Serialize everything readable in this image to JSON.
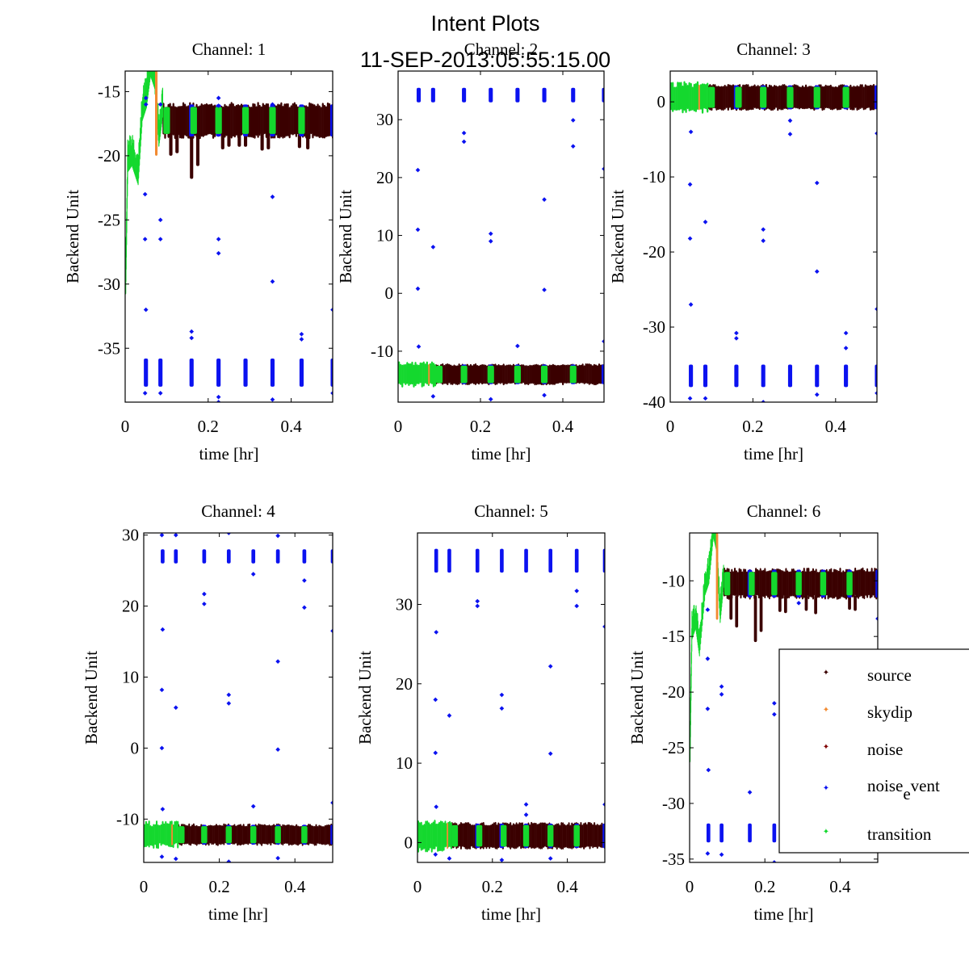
{
  "figure": {
    "title_line1": "Intent Plots",
    "title_line2": "11-SEP-2013:05:55:15.00"
  },
  "legend": {
    "entries": [
      {
        "key": "source",
        "label": "source",
        "color": "#3a0000"
      },
      {
        "key": "skydip",
        "label": "skydip",
        "color": "#f28a30"
      },
      {
        "key": "noise",
        "label": "noise",
        "color": "#800000"
      },
      {
        "key": "noise_event",
        "label_main": "noise",
        "label_sub": "e",
        "label_rest": "vent",
        "color": "#0b12f0"
      },
      {
        "key": "transition",
        "label": "transition",
        "color": "#14d82e"
      }
    ]
  },
  "chart_data": [
    {
      "type": "scatter",
      "title": "Channel: 1",
      "xlabel": "time [hr]",
      "ylabel": "Backend Unit",
      "xlim": [
        0,
        0.5
      ],
      "ylim": [
        -39.2,
        -13.4
      ],
      "xticks": [
        0,
        0.2,
        0.4
      ],
      "xtick_labels": [
        "0",
        "0.2",
        "0.4"
      ],
      "yticks": [
        -35,
        -30,
        -25,
        -20,
        -15
      ],
      "ytick_labels": [
        "-35",
        "-30",
        "-25",
        "-20",
        "-15"
      ],
      "transition_ramp": [
        [
          0,
          -30.5
        ],
        [
          0.005,
          -21
        ],
        [
          0.015,
          -20.5
        ],
        [
          0.03,
          -22
        ],
        [
          0.04,
          -17
        ],
        [
          0.05,
          -16
        ],
        [
          0.06,
          -13.5
        ],
        [
          0.07,
          -14.5
        ],
        [
          0.08,
          -19
        ],
        [
          0.09,
          -16.5
        ]
      ],
      "skydip": {
        "x": 0.075,
        "y_range": [
          -20,
          -13.4
        ]
      },
      "source_band": {
        "x_range": [
          0.09,
          0.5
        ],
        "y_range": [
          -18.3,
          -16.2
        ]
      },
      "source_dips": [
        [
          0.11,
          -20
        ],
        [
          0.125,
          -19.8
        ],
        [
          0.16,
          -21.8
        ],
        [
          0.175,
          -20.8
        ],
        [
          0.235,
          -19.5
        ],
        [
          0.25,
          -19.3
        ],
        [
          0.275,
          -19.3
        ],
        [
          0.29,
          -19.3
        ],
        [
          0.33,
          -19.6
        ],
        [
          0.345,
          -19.5
        ],
        [
          0.42,
          -19.4
        ],
        [
          0.44,
          -19.5
        ]
      ],
      "transition_blocks": [
        0.1,
        0.165,
        0.225,
        0.29,
        0.355,
        0.425
      ],
      "noise_event_blocks_x": [
        0.05,
        0.085,
        0.16,
        0.225,
        0.29,
        0.355,
        0.425,
        0.5
      ],
      "noise_event_cluster_y": [
        -38,
        -35.8
      ],
      "noise_event_outliers": [
        [
          0.048,
          -23
        ],
        [
          0.048,
          -26.5
        ],
        [
          0.05,
          -32
        ],
        [
          0.085,
          -25
        ],
        [
          0.085,
          -26.5
        ],
        [
          0.16,
          -33.7
        ],
        [
          0.16,
          -34.2
        ],
        [
          0.225,
          -26.5
        ],
        [
          0.225,
          -27.6
        ],
        [
          0.355,
          -23.2
        ],
        [
          0.355,
          -29.8
        ],
        [
          0.425,
          -33.9
        ],
        [
          0.425,
          -34.3
        ],
        [
          0.5,
          -32
        ],
        [
          0.05,
          -15.5
        ],
        [
          0.05,
          -16
        ],
        [
          0.085,
          -16
        ],
        [
          0.225,
          -15.5
        ],
        [
          0.225,
          -16.1
        ],
        [
          0.355,
          -16
        ],
        [
          0.048,
          -38.5
        ],
        [
          0.085,
          -38.5
        ],
        [
          0.225,
          -38.8
        ],
        [
          0.225,
          -39.2
        ],
        [
          0.355,
          -39
        ],
        [
          0.5,
          -38.5
        ]
      ]
    },
    {
      "type": "scatter",
      "title": "Channel: 2",
      "xlabel": "time [hr]",
      "ylabel": "Backend Unit",
      "xlim": [
        0,
        0.5
      ],
      "ylim": [
        -18.8,
        38.4
      ],
      "xticks": [
        0,
        0.2,
        0.4
      ],
      "xtick_labels": [
        "0",
        "0.2",
        "0.4"
      ],
      "yticks": [
        -10,
        0,
        10,
        20,
        30
      ],
      "ytick_labels": [
        "-10",
        "0",
        "10",
        "20",
        "30"
      ],
      "base_band": {
        "y_range": [
          -15.5,
          -12.5
        ]
      },
      "skydip_x": 0.075,
      "transition_region": [
        0,
        0.09
      ],
      "transition_blocks": [
        0.1,
        0.16,
        0.225,
        0.29,
        0.355,
        0.425
      ],
      "noise_event_blocks_x": [
        0.05,
        0.085,
        0.16,
        0.225,
        0.29,
        0.355,
        0.425,
        0.5
      ],
      "noise_event_cluster_y": [
        33,
        35.5
      ],
      "noise_event_outliers": [
        [
          0.048,
          21.3
        ],
        [
          0.048,
          11
        ],
        [
          0.048,
          0.8
        ],
        [
          0.085,
          8
        ],
        [
          0.16,
          27.7
        ],
        [
          0.16,
          26.2
        ],
        [
          0.225,
          10.3
        ],
        [
          0.225,
          9
        ],
        [
          0.355,
          16.2
        ],
        [
          0.355,
          0.6
        ],
        [
          0.425,
          29.9
        ],
        [
          0.425,
          25.4
        ],
        [
          0.5,
          21.5
        ],
        [
          0.05,
          -9.2
        ],
        [
          0.29,
          -9.1
        ],
        [
          0.5,
          -8.3
        ],
        [
          0.225,
          -18.3
        ],
        [
          0.085,
          -17.8
        ],
        [
          0.355,
          -17.6
        ]
      ]
    },
    {
      "type": "scatter",
      "title": "Channel: 3",
      "xlabel": "time [hr]",
      "ylabel": "Backend Unit",
      "xlim": [
        0,
        0.5
      ],
      "ylim": [
        -40,
        4.1
      ],
      "xticks": [
        0,
        0.2,
        0.4
      ],
      "xtick_labels": [
        "0",
        "0.2",
        "0.4"
      ],
      "yticks": [
        -40,
        -30,
        -20,
        -10,
        0
      ],
      "ytick_labels": [
        "-40",
        "-30",
        "-20",
        "-10",
        "0"
      ],
      "base_band": {
        "y_range": [
          -0.8,
          2
        ]
      },
      "skydip_x": 0.07,
      "transition_region": [
        0,
        0.09
      ],
      "transition_blocks": [
        0.1,
        0.165,
        0.225,
        0.29,
        0.355,
        0.425
      ],
      "noise_event_blocks_x": [
        0.05,
        0.085,
        0.16,
        0.225,
        0.29,
        0.355,
        0.425,
        0.5
      ],
      "noise_event_cluster_y": [
        -38,
        -35
      ],
      "noise_event_outliers": [
        [
          0.048,
          -11
        ],
        [
          0.048,
          -18.2
        ],
        [
          0.05,
          -27
        ],
        [
          0.085,
          -16
        ],
        [
          0.16,
          -30.8
        ],
        [
          0.16,
          -31.5
        ],
        [
          0.225,
          -17
        ],
        [
          0.225,
          -18.5
        ],
        [
          0.29,
          -2.5
        ],
        [
          0.29,
          -4.3
        ],
        [
          0.355,
          -10.8
        ],
        [
          0.355,
          -22.6
        ],
        [
          0.425,
          -30.8
        ],
        [
          0.425,
          -32.8
        ],
        [
          0.5,
          -27.6
        ],
        [
          0.5,
          -4.2
        ],
        [
          0.05,
          -4
        ],
        [
          0.048,
          -39.5
        ],
        [
          0.085,
          -39.5
        ],
        [
          0.225,
          -40
        ],
        [
          0.355,
          -39
        ],
        [
          0.5,
          -38.8
        ]
      ]
    },
    {
      "type": "scatter",
      "title": "Channel: 4",
      "xlabel": "time [hr]",
      "ylabel": "Backend Unit",
      "xlim": [
        0,
        0.5
      ],
      "ylim": [
        -16.1,
        30.3
      ],
      "xticks": [
        0,
        0.2,
        0.4
      ],
      "xtick_labels": [
        "0",
        "0.2",
        "0.4"
      ],
      "yticks": [
        -10,
        0,
        10,
        20,
        30
      ],
      "ytick_labels": [
        "-10",
        "0",
        "10",
        "20",
        "30"
      ],
      "base_band": {
        "y_range": [
          -13.4,
          -11
        ]
      },
      "skydip_x": 0.075,
      "transition_region": [
        0,
        0.09
      ],
      "transition_blocks": [
        0.1,
        0.16,
        0.225,
        0.29,
        0.355,
        0.425
      ],
      "noise_event_blocks_x": [
        0.05,
        0.085,
        0.16,
        0.225,
        0.29,
        0.355,
        0.425,
        0.5
      ],
      "noise_event_cluster_y": [
        26,
        28
      ],
      "noise_event_outliers": [
        [
          0.05,
          16.7
        ],
        [
          0.048,
          8.2
        ],
        [
          0.048,
          0
        ],
        [
          0.085,
          5.7
        ],
        [
          0.16,
          21.7
        ],
        [
          0.16,
          20.3
        ],
        [
          0.225,
          7.5
        ],
        [
          0.225,
          6.3
        ],
        [
          0.29,
          24.5
        ],
        [
          0.355,
          12.2
        ],
        [
          0.355,
          -0.2
        ],
        [
          0.425,
          23.6
        ],
        [
          0.425,
          19.8
        ],
        [
          0.5,
          16.5
        ],
        [
          0.05,
          -8.6
        ],
        [
          0.29,
          -8.2
        ],
        [
          0.5,
          -7.7
        ],
        [
          0.048,
          -15.3
        ],
        [
          0.085,
          -15.6
        ],
        [
          0.225,
          -16
        ],
        [
          0.355,
          -15.5
        ],
        [
          0.048,
          30
        ],
        [
          0.085,
          30
        ],
        [
          0.225,
          30.3
        ],
        [
          0.355,
          29.9
        ]
      ]
    },
    {
      "type": "scatter",
      "title": "Channel: 5",
      "xlabel": "time [hr]",
      "ylabel": "Backend Unit",
      "xlim": [
        0,
        0.5
      ],
      "ylim": [
        -2.5,
        39
      ],
      "xticks": [
        0,
        0.2,
        0.4
      ],
      "xtick_labels": [
        "0",
        "0.2",
        "0.4"
      ],
      "yticks": [
        0,
        10,
        20,
        30
      ],
      "ytick_labels": [
        "0",
        "10",
        "20",
        "30"
      ],
      "base_band": {
        "y_range": [
          -0.5,
          2.2
        ]
      },
      "skydip_x": 0.08,
      "transition_region": [
        0,
        0.09
      ],
      "transition_blocks": [
        0.1,
        0.165,
        0.23,
        0.29,
        0.355,
        0.425
      ],
      "noise_event_blocks_x": [
        0.05,
        0.085,
        0.16,
        0.225,
        0.29,
        0.355,
        0.425,
        0.5
      ],
      "noise_event_cluster_y": [
        34,
        37
      ],
      "noise_event_outliers": [
        [
          0.05,
          26.5
        ],
        [
          0.048,
          18
        ],
        [
          0.048,
          11.3
        ],
        [
          0.05,
          4.5
        ],
        [
          0.085,
          16
        ],
        [
          0.16,
          30.4
        ],
        [
          0.16,
          29.8
        ],
        [
          0.225,
          18.6
        ],
        [
          0.225,
          16.9
        ],
        [
          0.29,
          4.8
        ],
        [
          0.29,
          3.5
        ],
        [
          0.355,
          22.2
        ],
        [
          0.355,
          11.2
        ],
        [
          0.425,
          31.7
        ],
        [
          0.425,
          29.8
        ],
        [
          0.5,
          27.2
        ],
        [
          0.5,
          4.8
        ],
        [
          0.225,
          -2.2
        ],
        [
          0.048,
          -1.5
        ],
        [
          0.085,
          -2
        ],
        [
          0.355,
          -2
        ]
      ]
    },
    {
      "type": "scatter",
      "title": "Channel: 6",
      "xlabel": "time [hr]",
      "ylabel": "Backend Unit",
      "xlim": [
        0,
        0.5
      ],
      "ylim": [
        -35.3,
        -5.7
      ],
      "xticks": [
        0,
        0.2,
        0.4
      ],
      "xtick_labels": [
        "0",
        "0.2",
        "0.4"
      ],
      "yticks": [
        -35,
        -30,
        -25,
        -20,
        -15,
        -10
      ],
      "ytick_labels": [
        "-35",
        "-30",
        "-25",
        "-20",
        "-15",
        "-10"
      ],
      "transition_ramp": [
        [
          0,
          -26
        ],
        [
          0.005,
          -15
        ],
        [
          0.015,
          -14
        ],
        [
          0.025,
          -16.5
        ],
        [
          0.04,
          -11
        ],
        [
          0.05,
          -10
        ],
        [
          0.062,
          -5.8
        ],
        [
          0.07,
          -7
        ],
        [
          0.08,
          -13.5
        ],
        [
          0.09,
          -10
        ]
      ],
      "skydip": {
        "x": 0.073,
        "y_range": [
          -13.5,
          -5.7
        ]
      },
      "source_band": {
        "x_range": [
          0.09,
          0.5
        ],
        "y_range": [
          -11.3,
          -9.2
        ]
      },
      "source_dips": [
        [
          0.11,
          -13.5
        ],
        [
          0.125,
          -14.2
        ],
        [
          0.175,
          -15.5
        ],
        [
          0.19,
          -14.6
        ],
        [
          0.24,
          -12.8
        ],
        [
          0.255,
          -12.9
        ],
        [
          0.31,
          -12.7
        ],
        [
          0.335,
          -13
        ],
        [
          0.425,
          -12.6
        ],
        [
          0.44,
          -12.7
        ]
      ],
      "transition_blocks": [
        0.1,
        0.165,
        0.225,
        0.29,
        0.355,
        0.425
      ],
      "noise_event_blocks_x": [
        0.05,
        0.085,
        0.16,
        0.225,
        0.29,
        0.355,
        0.425,
        0.5
      ],
      "noise_event_cluster_y": [
        -33.5,
        -31.8
      ],
      "noise_event_outliers": [
        [
          0.048,
          -17
        ],
        [
          0.048,
          -21.5
        ],
        [
          0.05,
          -27
        ],
        [
          0.085,
          -19.5
        ],
        [
          0.085,
          -20.2
        ],
        [
          0.16,
          -29
        ],
        [
          0.225,
          -21
        ],
        [
          0.225,
          -22
        ],
        [
          0.048,
          -12.6
        ],
        [
          0.29,
          -12
        ],
        [
          0.5,
          -13.4
        ],
        [
          0.048,
          -34.5
        ],
        [
          0.085,
          -34.6
        ],
        [
          0.225,
          -35.3
        ]
      ]
    }
  ]
}
